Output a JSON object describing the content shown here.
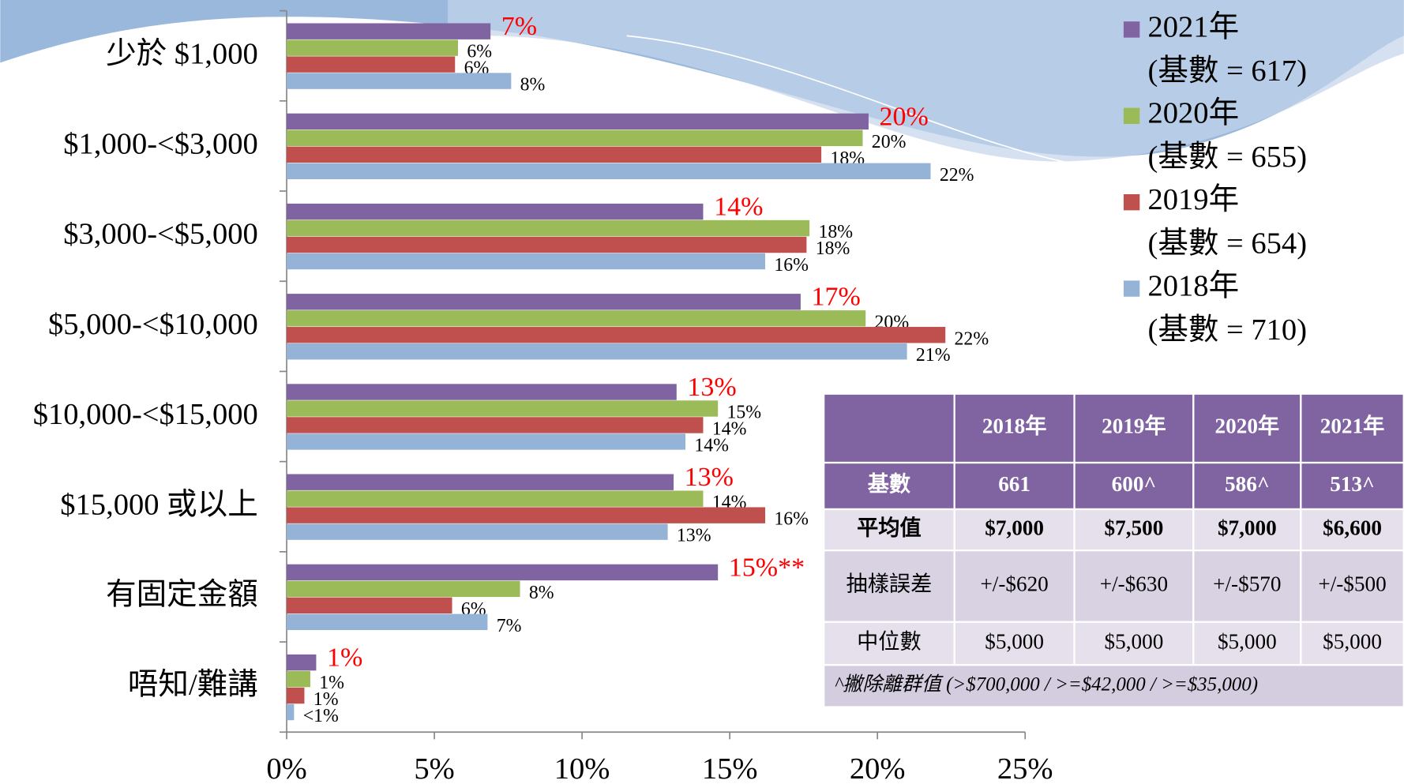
{
  "chart_data": {
    "type": "hbar",
    "categories": [
      "少於 $1,000",
      "$1,000-<$3,000",
      "$3,000-<$5,000",
      "$5,000-<$10,000",
      "$10,000-<$15,000",
      "$15,000 或以上",
      "有固定金額",
      "唔知/難講"
    ],
    "series": [
      {
        "name": "2021年",
        "legend_note": "(基數 = 617)",
        "color": "#8064a2",
        "values": [
          6.9,
          19.7,
          14.1,
          17.4,
          13.2,
          13.1,
          14.6,
          1.0
        ],
        "value_labels": [
          "7%",
          "20%",
          "14%",
          "17%",
          "13%",
          "13%",
          "15%**",
          "1%"
        ],
        "label_color": "#ff0000"
      },
      {
        "name": "2020年",
        "legend_note": "(基數 = 655)",
        "color": "#9bbb59",
        "values": [
          5.8,
          19.5,
          17.7,
          19.6,
          14.6,
          14.1,
          7.9,
          0.8
        ],
        "value_labels": [
          "6%",
          "20%",
          "18%",
          "20%",
          "15%",
          "14%",
          "8%",
          "1%"
        ],
        "label_color": "#000000"
      },
      {
        "name": "2019年",
        "legend_note": "(基數 = 654)",
        "color": "#c0504d",
        "values": [
          5.7,
          18.1,
          17.6,
          22.3,
          14.1,
          16.2,
          5.6,
          0.6
        ],
        "value_labels": [
          "6%",
          "18%",
          "18%",
          "22%",
          "14%",
          "16%",
          "6%",
          "1%"
        ],
        "label_color": "#000000"
      },
      {
        "name": "2018年",
        "legend_note": "(基數 = 710)",
        "color": "#95b3d7",
        "values": [
          7.6,
          21.8,
          16.2,
          21.0,
          13.5,
          12.9,
          6.8,
          0.25
        ],
        "value_labels": [
          "8%",
          "22%",
          "16%",
          "21%",
          "14%",
          "13%",
          "7%",
          "<1%"
        ],
        "label_color": "#000000"
      }
    ],
    "xlim": [
      0,
      25
    ],
    "xticks": [
      {
        "value": 0,
        "label": "0%"
      },
      {
        "value": 5,
        "label": "5%"
      },
      {
        "value": 10,
        "label": "10%"
      },
      {
        "value": 15,
        "label": "15%"
      },
      {
        "value": 20,
        "label": "20%"
      },
      {
        "value": 25,
        "label": "25%"
      }
    ],
    "grid": false
  },
  "table": {
    "header": [
      "2018年",
      "2019年",
      "2020年",
      "2021年"
    ],
    "rows": [
      {
        "label": "基數",
        "cells": [
          "661",
          "600^",
          "586^",
          "513^"
        ]
      },
      {
        "label": "平均值",
        "cells": [
          "$7,000",
          "$7,500",
          "$7,000",
          "$6,600"
        ]
      },
      {
        "label": "抽樣誤差",
        "cells": [
          "+/-$620",
          "+/-$630",
          "+/-$570",
          "+/-$500"
        ]
      },
      {
        "label": "中位數",
        "cells": [
          "$5,000",
          "$5,000",
          "$5,000",
          "$5,000"
        ]
      }
    ],
    "note": "^撇除離群值 (>$700,000 / >=$42,000 / >=$35,000)"
  }
}
